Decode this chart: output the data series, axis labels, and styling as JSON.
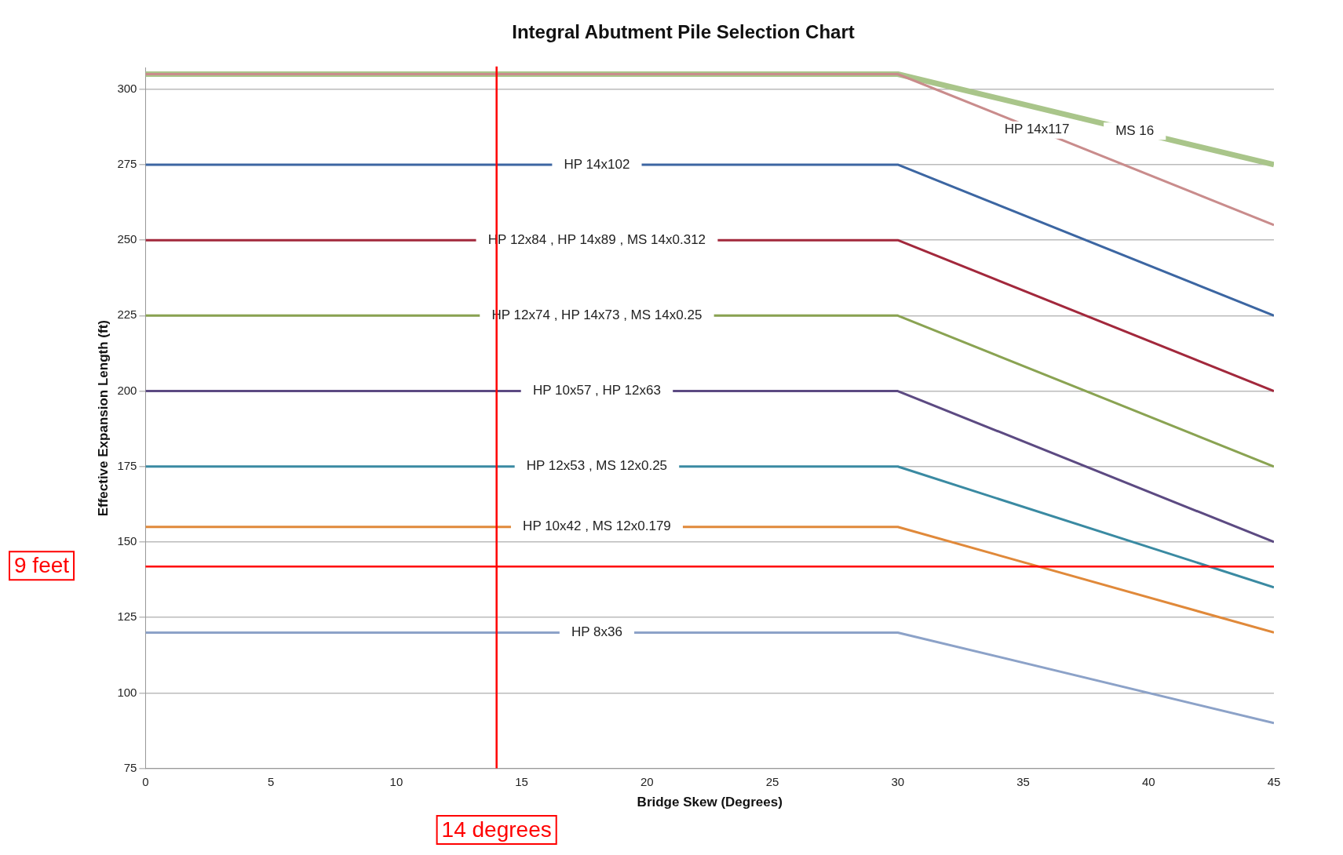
{
  "chart_data": {
    "type": "line",
    "title": "Integral Abutment Pile Selection Chart",
    "xlabel": "Bridge Skew (Degrees)",
    "ylabel": "Effective Expansion Length (ft)",
    "x": [
      0,
      30,
      45
    ],
    "series": [
      {
        "name": "HP 14x117",
        "color": "#c98c8c",
        "values": [
          305,
          305,
          255
        ]
      },
      {
        "name": "MS 16",
        "color": "#a9c58a",
        "values": [
          305,
          305,
          275
        ]
      },
      {
        "name": "HP 14x102",
        "color": "#3c66a2",
        "values": [
          275,
          275,
          225
        ]
      },
      {
        "name": "HP 12x84 , HP 14x89 , MS 14x0.312",
        "color": "#a2283c",
        "values": [
          250,
          250,
          200
        ]
      },
      {
        "name": "HP 12x74 , HP 14x73 , MS 14x0.25",
        "color": "#8aa352",
        "values": [
          225,
          225,
          175
        ]
      },
      {
        "name": "HP 10x57 , HP 12x63",
        "color": "#5c4a82",
        "values": [
          200,
          200,
          150
        ]
      },
      {
        "name": "HP 12x53 , MS 12x0.25",
        "color": "#3a8aa2",
        "values": [
          175,
          175,
          135
        ]
      },
      {
        "name": "HP 10x42 , MS 12x0.179",
        "color": "#e0893a",
        "values": [
          155,
          155,
          120
        ]
      },
      {
        "name": "HP 8x36",
        "color": "#8ca2c8",
        "values": [
          120,
          120,
          90
        ]
      }
    ],
    "xlim": [
      0,
      45
    ],
    "xticks": [
      0,
      5,
      10,
      15,
      20,
      25,
      30,
      35,
      40,
      45
    ],
    "ylim": [
      75,
      307
    ],
    "yticks": [
      75,
      100,
      125,
      150,
      175,
      200,
      225,
      250,
      275,
      300
    ],
    "grid": "y",
    "legend": false,
    "marker": "none",
    "line_style": "solid",
    "ref_lines": [
      {
        "axis": "y",
        "value": 141.9,
        "label": "9 feet",
        "color": "#ff0000"
      },
      {
        "axis": "x",
        "value": 14,
        "label": "14 degrees",
        "color": "#ff0000"
      }
    ]
  }
}
